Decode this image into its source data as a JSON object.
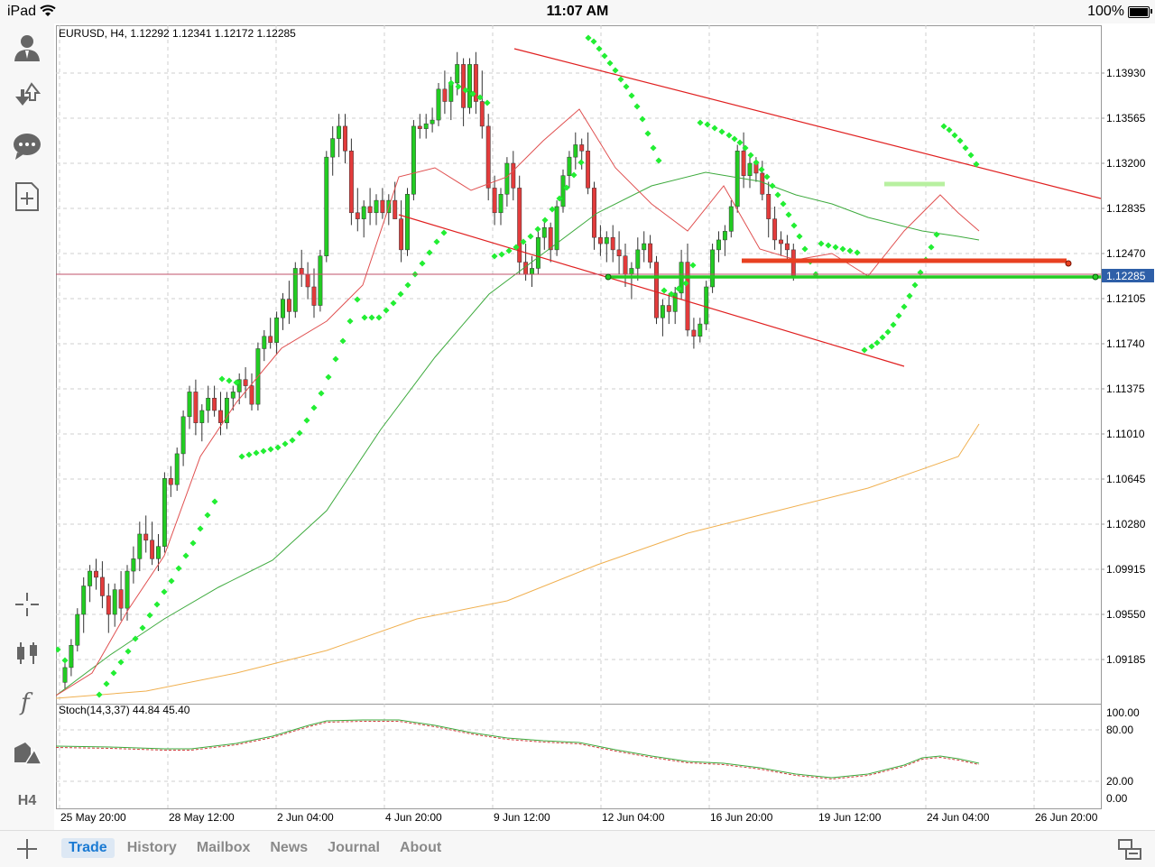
{
  "status_bar": {
    "device": "iPad",
    "time": "11:07 AM",
    "battery": "100%"
  },
  "toolbar": {
    "account_icon": "person-icon",
    "trade_icon": "buy-sell-arrows-icon",
    "chat_icon": "chat-bubble-icon",
    "new_order_icon": "new-document-icon",
    "crosshair_icon": "crosshair-icon",
    "chart_type_icon": "candlestick-icon",
    "indicators_icon": "function-icon",
    "objects_icon": "shapes-icon",
    "timeframe_label": "H4"
  },
  "chart": {
    "symbol_info": "EURUSD, H4, 1.12292 1.12341 1.12172 1.12285",
    "price_levels": [
      "1.13930",
      "1.13565",
      "1.13200",
      "1.12835",
      "1.12470",
      "1.12105",
      "1.11740",
      "1.11375",
      "1.11010",
      "1.10645",
      "1.10280",
      "1.09915",
      "1.09550",
      "1.09185"
    ],
    "current_price": "1.12285",
    "time_labels": [
      "25 May 20:00",
      "28 May 12:00",
      "2 Jun 04:00",
      "4 Jun 20:00",
      "9 Jun 12:00",
      "12 Jun 04:00",
      "16 Jun 20:00",
      "19 Jun 12:00",
      "24 Jun 04:00",
      "26 Jun 20:00"
    ],
    "stoch_info": "Stoch(14,3,37) 44.84 45.40",
    "stoch_levels": [
      "100.00",
      "80.00",
      "20.00",
      "0.00"
    ],
    "colors": {
      "bull": "#22cc22",
      "bear": "#e33b3b",
      "psar": "#22ee33",
      "channel": "#e02020",
      "ma_green": "#3daa3d",
      "ma_orange": "#f0b050",
      "ma_red": "#e05050",
      "price_label_bg": "#2e5fa8"
    }
  },
  "tabs": [
    {
      "label": "Trade",
      "active": true
    },
    {
      "label": "History",
      "active": false
    },
    {
      "label": "Mailbox",
      "active": false
    },
    {
      "label": "News",
      "active": false
    },
    {
      "label": "Journal",
      "active": false
    },
    {
      "label": "About",
      "active": false
    }
  ],
  "bottom": {
    "add_icon": "plus-icon",
    "window_icon": "window-layout-icon"
  }
}
